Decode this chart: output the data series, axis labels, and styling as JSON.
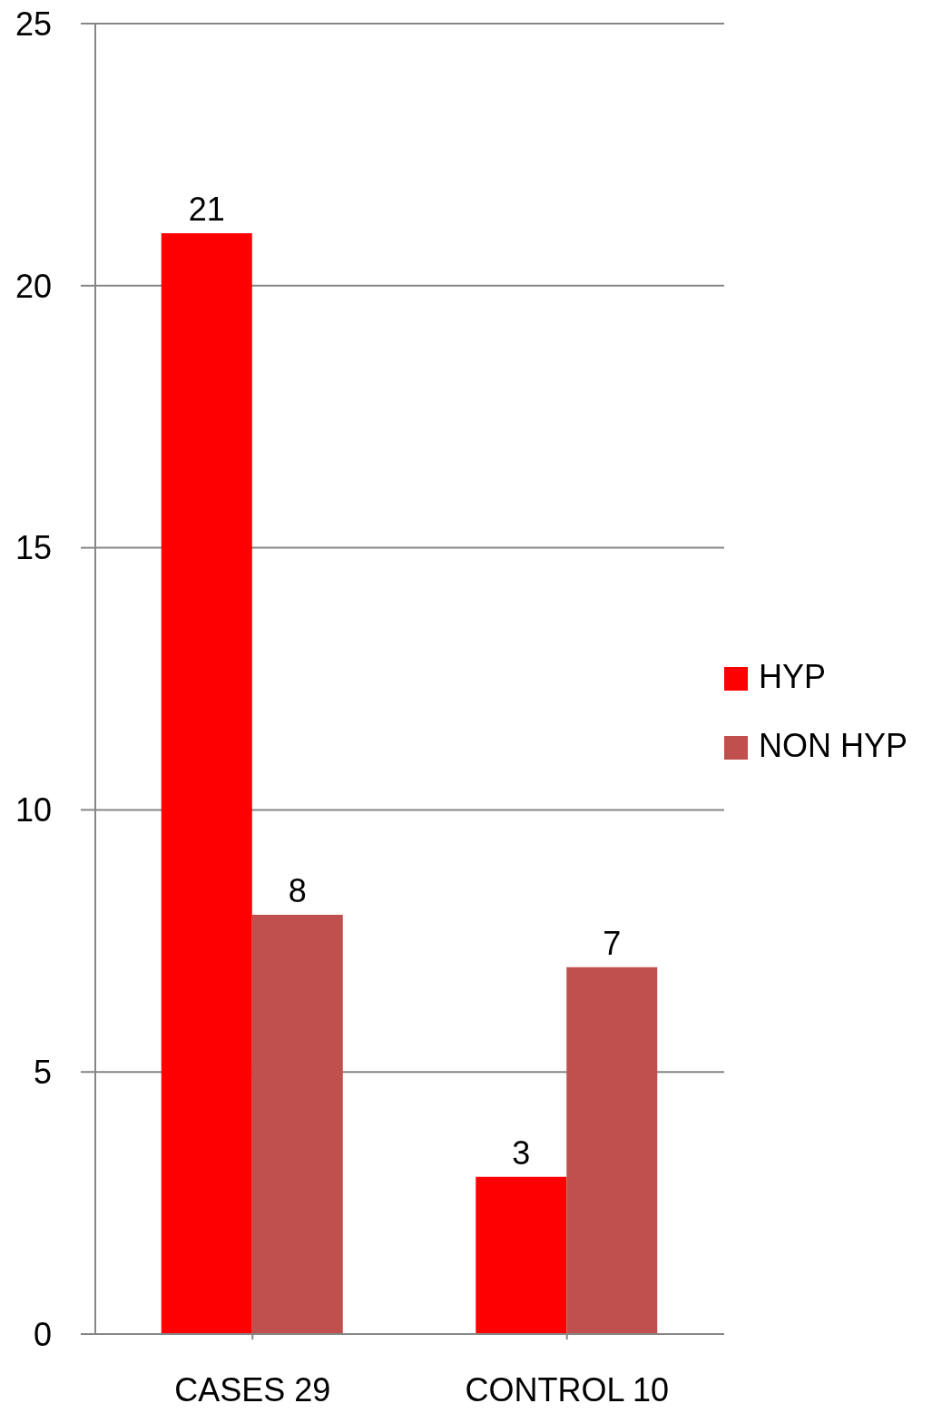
{
  "chart_data": {
    "type": "bar",
    "categories": [
      "CASES 29",
      "CONTROL 10"
    ],
    "series": [
      {
        "name": "HYP",
        "color": "#ff0000",
        "values": [
          21,
          3
        ]
      },
      {
        "name": "NON HYP",
        "color": "#c0504d",
        "values": [
          8,
          7
        ]
      }
    ],
    "ylim": [
      0,
      25
    ],
    "yticks": [
      0,
      5,
      10,
      15,
      20,
      25
    ],
    "grid": "y",
    "legend": "right",
    "data_labels": true
  }
}
